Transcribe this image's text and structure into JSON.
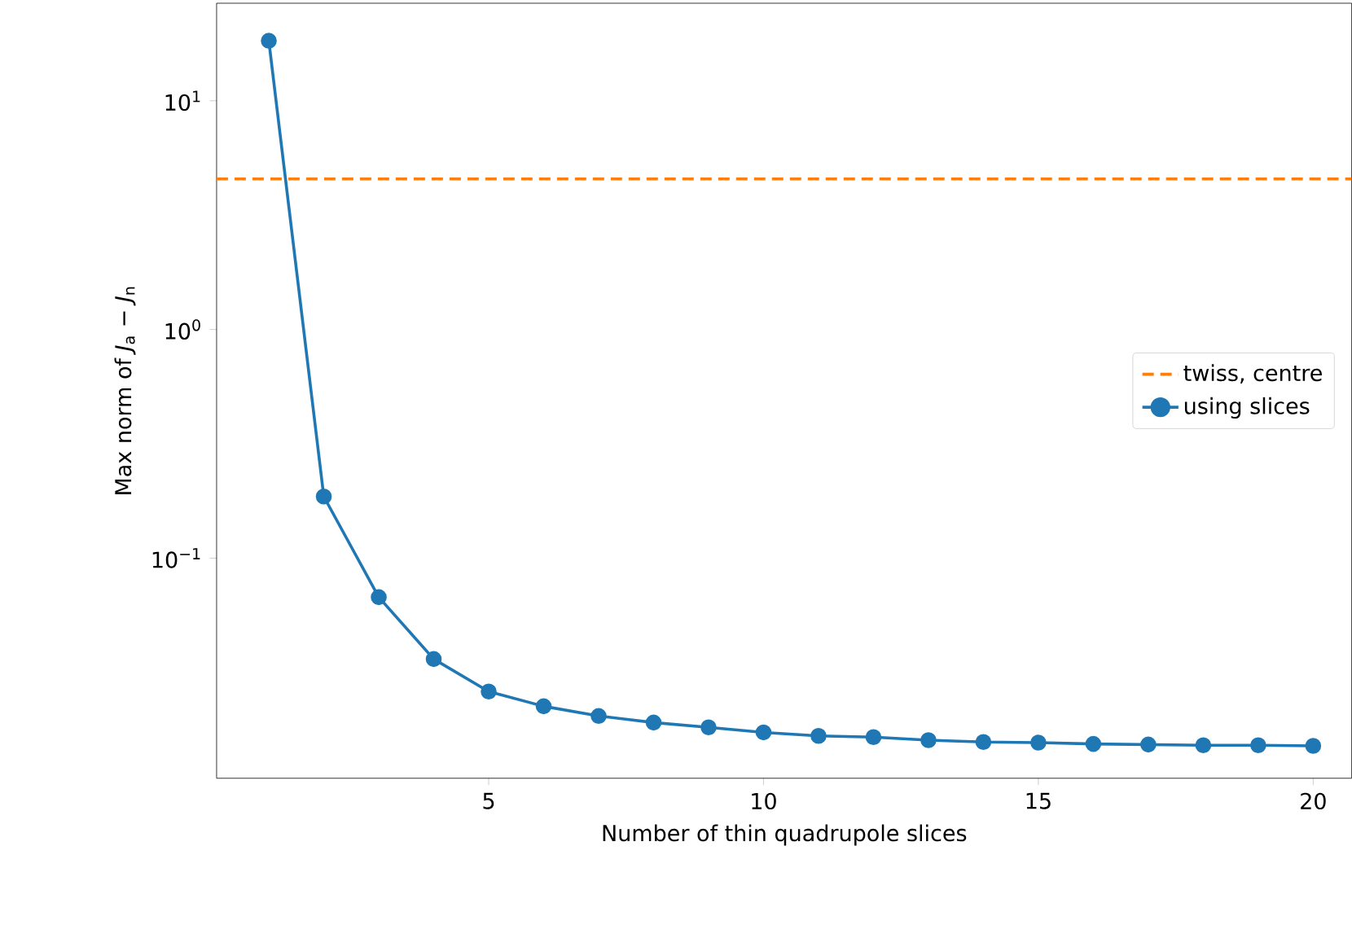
{
  "chart_data": {
    "type": "line",
    "xlabel": "Number of thin quadrupole slices",
    "ylabel": "Max norm of *J*$_{a}$ − *J*$_{n}$",
    "x": [
      1,
      2,
      3,
      4,
      5,
      6,
      7,
      8,
      9,
      10,
      11,
      12,
      13,
      14,
      15,
      16,
      17,
      18,
      19,
      20
    ],
    "series": [
      {
        "name": "using slices",
        "color": "#1f77b4",
        "values": [
          18.3,
          0.186,
          0.0675,
          0.0362,
          0.0261,
          0.0225,
          0.0204,
          0.0191,
          0.0182,
          0.0173,
          0.0167,
          0.0165,
          0.016,
          0.0157,
          0.0156,
          0.0154,
          0.0153,
          0.0152,
          0.0152,
          0.0151
        ]
      }
    ],
    "ref_lines": [
      {
        "axis": "y",
        "value": 4.55,
        "label": "twiss, centre",
        "color": "#ff7f0e",
        "line_style": "dashed"
      }
    ],
    "log": "y",
    "xlim": [
      0.05,
      20.7
    ],
    "ylim": [
      0.0109,
      26.7
    ],
    "xticks": [
      5,
      10,
      15,
      20
    ],
    "yticks": [
      {
        "value": 0.1,
        "label": "10$^{−1}$"
      },
      {
        "value": 1,
        "label": "10$^{0}$"
      },
      {
        "value": 10,
        "label": "10$^{1}$"
      }
    ],
    "marker": "circle",
    "line_style": "solid",
    "legend": "right",
    "grid": false
  }
}
